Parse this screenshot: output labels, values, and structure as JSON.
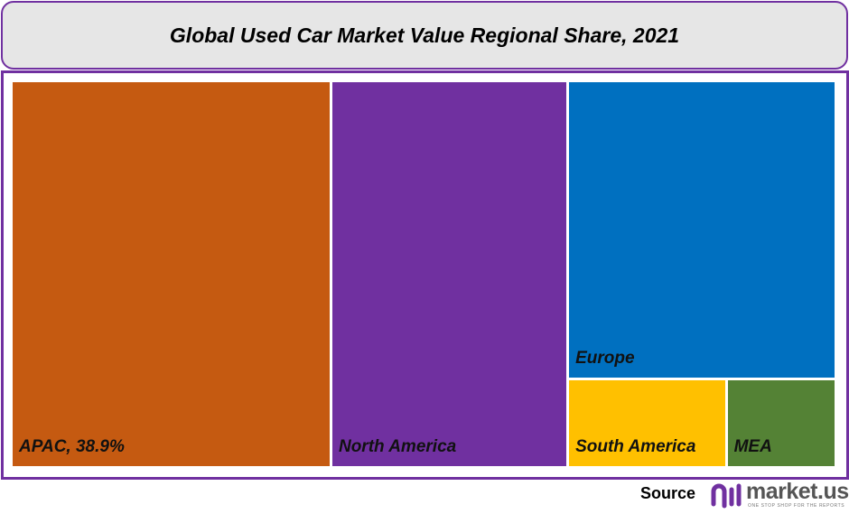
{
  "chart_data": {
    "type": "treemap",
    "title": "Global Used Car Market Value Regional Share, 2021",
    "unit": "%",
    "items": [
      {
        "name": "APAC",
        "value": 38.9,
        "label": "APAC, 38.9%",
        "color": "#c55a11"
      },
      {
        "name": "North America",
        "value": 28.8,
        "label": "North America",
        "color": "#7030a0"
      },
      {
        "name": "Europe",
        "value": 25.1,
        "label": "Europe",
        "color": "#0070c0"
      },
      {
        "name": "South America",
        "value": 4.3,
        "label": "South America",
        "color": "#ffc000"
      },
      {
        "name": "MEA",
        "value": 2.9,
        "label": "MEA",
        "color": "#548235"
      }
    ]
  },
  "footer": {
    "source_label": "Source",
    "logo_text": "market.us",
    "logo_tagline": "ONE STOP SHOP FOR THE REPORTS"
  },
  "colors": {
    "border": "#7030a0",
    "title_bg": "#e6e6e6"
  }
}
